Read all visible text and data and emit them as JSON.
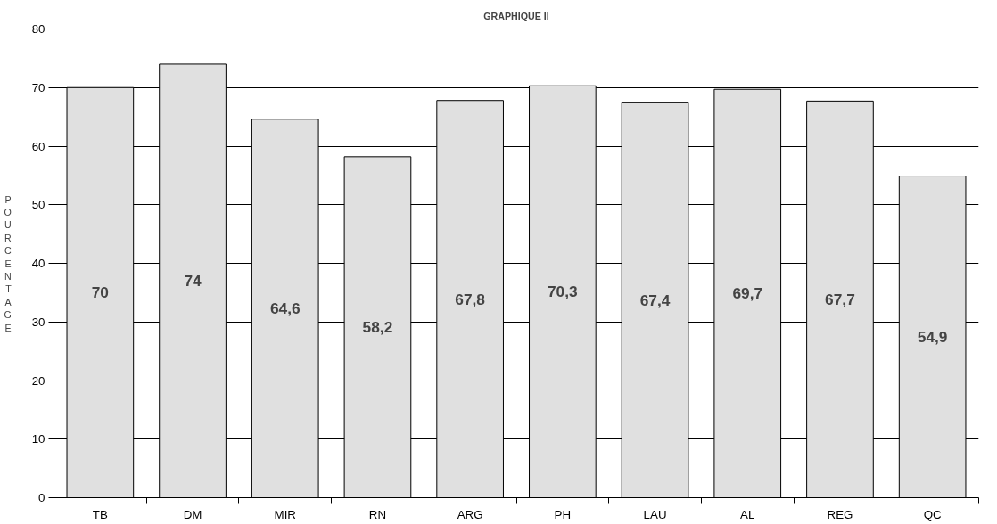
{
  "chart_data": {
    "type": "bar",
    "title": "GRAPHIQUE II",
    "ylabel": "POURCENTAGE",
    "categories": [
      "TB",
      "DM",
      "MIR",
      "RN",
      "ARG",
      "PH",
      "LAU",
      "AL",
      "REG",
      "QC"
    ],
    "values": [
      70,
      74,
      64.6,
      58.2,
      67.8,
      70.3,
      67.4,
      69.7,
      67.7,
      54.9
    ],
    "value_labels": [
      "70",
      "74",
      "64,6",
      "58,2",
      "67,8",
      "70,3",
      "67,4",
      "69,7",
      "67,7",
      "54,9"
    ],
    "color": "#e0e0e0",
    "ylim": [
      0,
      80
    ],
    "yticks": [
      0,
      10,
      20,
      30,
      40,
      50,
      60,
      70,
      80
    ],
    "grid": "y"
  }
}
